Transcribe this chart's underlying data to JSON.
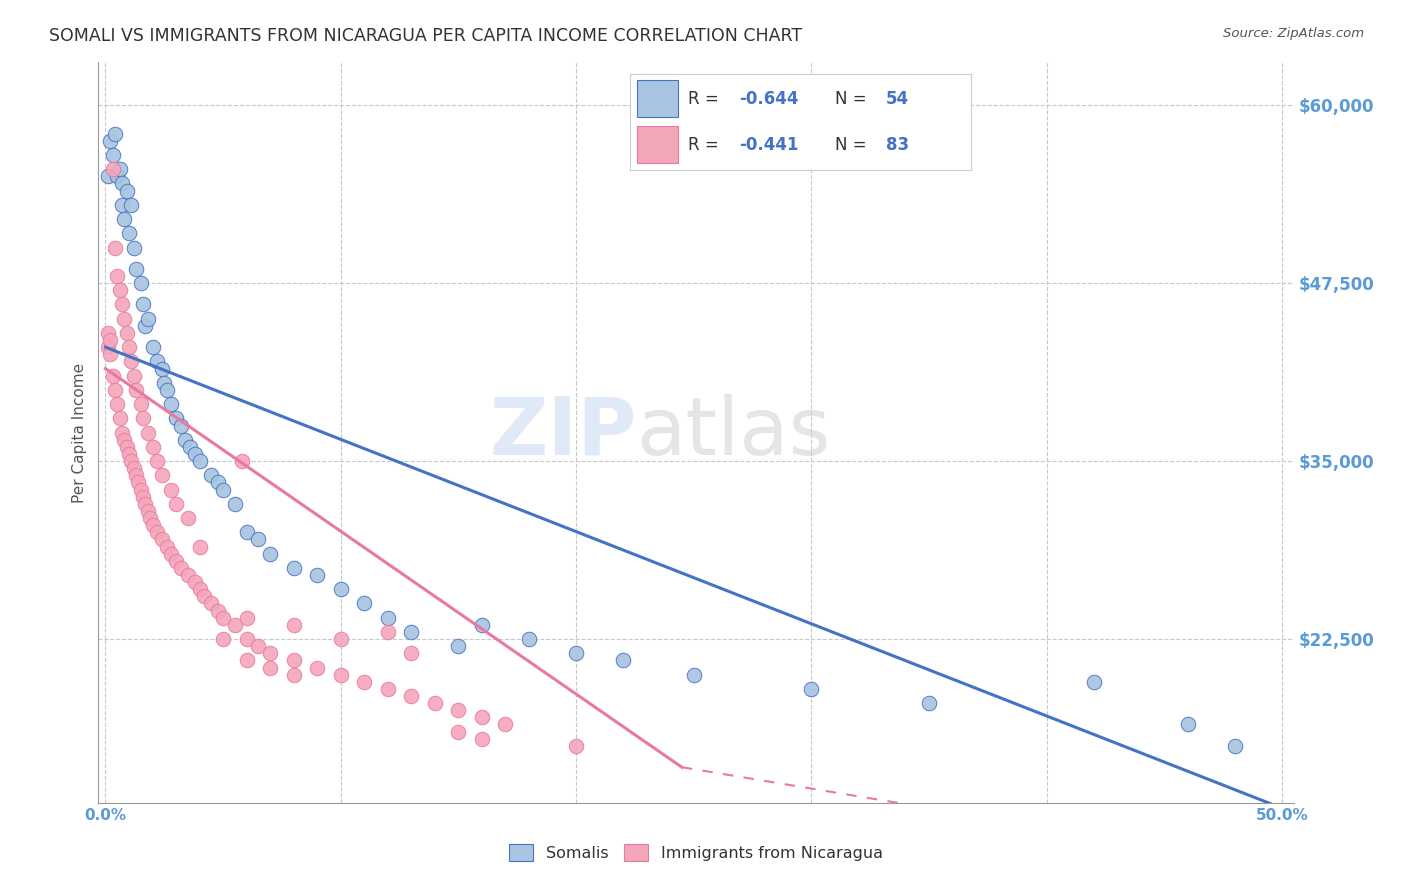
{
  "title": "SOMALI VS IMMIGRANTS FROM NICARAGUA PER CAPITA INCOME CORRELATION CHART",
  "source": "Source: ZipAtlas.com",
  "ylabel": "Per Capita Income",
  "ytick_labels": [
    "$60,000",
    "$47,500",
    "$35,000",
    "$22,500"
  ],
  "ytick_values": [
    60000,
    47500,
    35000,
    22500
  ],
  "ymin": 11000,
  "ymax": 63000,
  "xmin": -0.003,
  "xmax": 0.505,
  "watermark_zip": "ZIP",
  "watermark_atlas": "atlas",
  "legend_R_somali": "-0.644",
  "legend_N_somali": "54",
  "legend_R_nicaragua": "-0.441",
  "legend_N_nicaragua": "83",
  "somali_fill": "#a8c4e0",
  "nicaragua_fill": "#f4a7b9",
  "somali_edge": "#4472c4",
  "nicaragua_edge": "#e879a0",
  "somali_line_color": "#4472c4",
  "nicaragua_line_color": "#e879a0",
  "text_dark": "#333333",
  "text_blue": "#4472c4",
  "axis_tick_color": "#5b9bd5",
  "grid_color": "#c8c8c8",
  "somali_scatter": [
    [
      0.001,
      55000
    ],
    [
      0.002,
      57500
    ],
    [
      0.003,
      56500
    ],
    [
      0.004,
      58000
    ],
    [
      0.005,
      55000
    ],
    [
      0.006,
      55500
    ],
    [
      0.007,
      53000
    ],
    [
      0.007,
      54500
    ],
    [
      0.008,
      52000
    ],
    [
      0.009,
      54000
    ],
    [
      0.01,
      51000
    ],
    [
      0.011,
      53000
    ],
    [
      0.012,
      50000
    ],
    [
      0.013,
      48500
    ],
    [
      0.015,
      47500
    ],
    [
      0.016,
      46000
    ],
    [
      0.017,
      44500
    ],
    [
      0.018,
      45000
    ],
    [
      0.02,
      43000
    ],
    [
      0.022,
      42000
    ],
    [
      0.024,
      41500
    ],
    [
      0.025,
      40500
    ],
    [
      0.026,
      40000
    ],
    [
      0.028,
      39000
    ],
    [
      0.03,
      38000
    ],
    [
      0.032,
      37500
    ],
    [
      0.034,
      36500
    ],
    [
      0.036,
      36000
    ],
    [
      0.038,
      35500
    ],
    [
      0.04,
      35000
    ],
    [
      0.045,
      34000
    ],
    [
      0.048,
      33500
    ],
    [
      0.05,
      33000
    ],
    [
      0.055,
      32000
    ],
    [
      0.06,
      30000
    ],
    [
      0.065,
      29500
    ],
    [
      0.07,
      28500
    ],
    [
      0.08,
      27500
    ],
    [
      0.09,
      27000
    ],
    [
      0.1,
      26000
    ],
    [
      0.11,
      25000
    ],
    [
      0.12,
      24000
    ],
    [
      0.13,
      23000
    ],
    [
      0.15,
      22000
    ],
    [
      0.16,
      23500
    ],
    [
      0.18,
      22500
    ],
    [
      0.2,
      21500
    ],
    [
      0.22,
      21000
    ],
    [
      0.25,
      20000
    ],
    [
      0.3,
      19000
    ],
    [
      0.35,
      18000
    ],
    [
      0.42,
      19500
    ],
    [
      0.46,
      16500
    ],
    [
      0.48,
      15000
    ]
  ],
  "nicaragua_scatter": [
    [
      0.001,
      43000
    ],
    [
      0.001,
      44000
    ],
    [
      0.002,
      42500
    ],
    [
      0.002,
      43500
    ],
    [
      0.003,
      41000
    ],
    [
      0.003,
      55500
    ],
    [
      0.004,
      40000
    ],
    [
      0.004,
      50000
    ],
    [
      0.005,
      39000
    ],
    [
      0.005,
      48000
    ],
    [
      0.006,
      38000
    ],
    [
      0.006,
      47000
    ],
    [
      0.007,
      37000
    ],
    [
      0.007,
      46000
    ],
    [
      0.008,
      36500
    ],
    [
      0.008,
      45000
    ],
    [
      0.009,
      36000
    ],
    [
      0.009,
      44000
    ],
    [
      0.01,
      35500
    ],
    [
      0.01,
      43000
    ],
    [
      0.011,
      35000
    ],
    [
      0.011,
      42000
    ],
    [
      0.012,
      34500
    ],
    [
      0.012,
      41000
    ],
    [
      0.013,
      34000
    ],
    [
      0.013,
      40000
    ],
    [
      0.014,
      33500
    ],
    [
      0.015,
      33000
    ],
    [
      0.015,
      39000
    ],
    [
      0.016,
      32500
    ],
    [
      0.016,
      38000
    ],
    [
      0.017,
      32000
    ],
    [
      0.018,
      31500
    ],
    [
      0.018,
      37000
    ],
    [
      0.019,
      31000
    ],
    [
      0.02,
      30500
    ],
    [
      0.02,
      36000
    ],
    [
      0.022,
      30000
    ],
    [
      0.022,
      35000
    ],
    [
      0.024,
      29500
    ],
    [
      0.024,
      34000
    ],
    [
      0.026,
      29000
    ],
    [
      0.028,
      28500
    ],
    [
      0.028,
      33000
    ],
    [
      0.03,
      28000
    ],
    [
      0.03,
      32000
    ],
    [
      0.032,
      27500
    ],
    [
      0.035,
      27000
    ],
    [
      0.035,
      31000
    ],
    [
      0.038,
      26500
    ],
    [
      0.04,
      26000
    ],
    [
      0.042,
      25500
    ],
    [
      0.045,
      25000
    ],
    [
      0.048,
      24500
    ],
    [
      0.05,
      24000
    ],
    [
      0.055,
      23500
    ],
    [
      0.058,
      35000
    ],
    [
      0.06,
      22500
    ],
    [
      0.065,
      22000
    ],
    [
      0.07,
      21500
    ],
    [
      0.08,
      21000
    ],
    [
      0.09,
      20500
    ],
    [
      0.1,
      20000
    ],
    [
      0.11,
      19500
    ],
    [
      0.12,
      19000
    ],
    [
      0.13,
      18500
    ],
    [
      0.14,
      18000
    ],
    [
      0.15,
      17500
    ],
    [
      0.16,
      17000
    ],
    [
      0.17,
      16500
    ],
    [
      0.08,
      23500
    ],
    [
      0.04,
      29000
    ],
    [
      0.05,
      22500
    ],
    [
      0.06,
      24000
    ],
    [
      0.1,
      22500
    ],
    [
      0.12,
      23000
    ],
    [
      0.13,
      21500
    ],
    [
      0.15,
      16000
    ],
    [
      0.16,
      15500
    ],
    [
      0.2,
      15000
    ],
    [
      0.06,
      21000
    ],
    [
      0.07,
      20500
    ],
    [
      0.08,
      20000
    ]
  ],
  "somali_trendline": [
    [
      0.0,
      43000
    ],
    [
      0.502,
      10500
    ]
  ],
  "nicaragua_trendline_solid": [
    [
      0.0,
      41500
    ],
    [
      0.245,
      13500
    ]
  ],
  "nicaragua_trendline_dashed": [
    [
      0.245,
      13500
    ],
    [
      0.355,
      10500
    ]
  ]
}
